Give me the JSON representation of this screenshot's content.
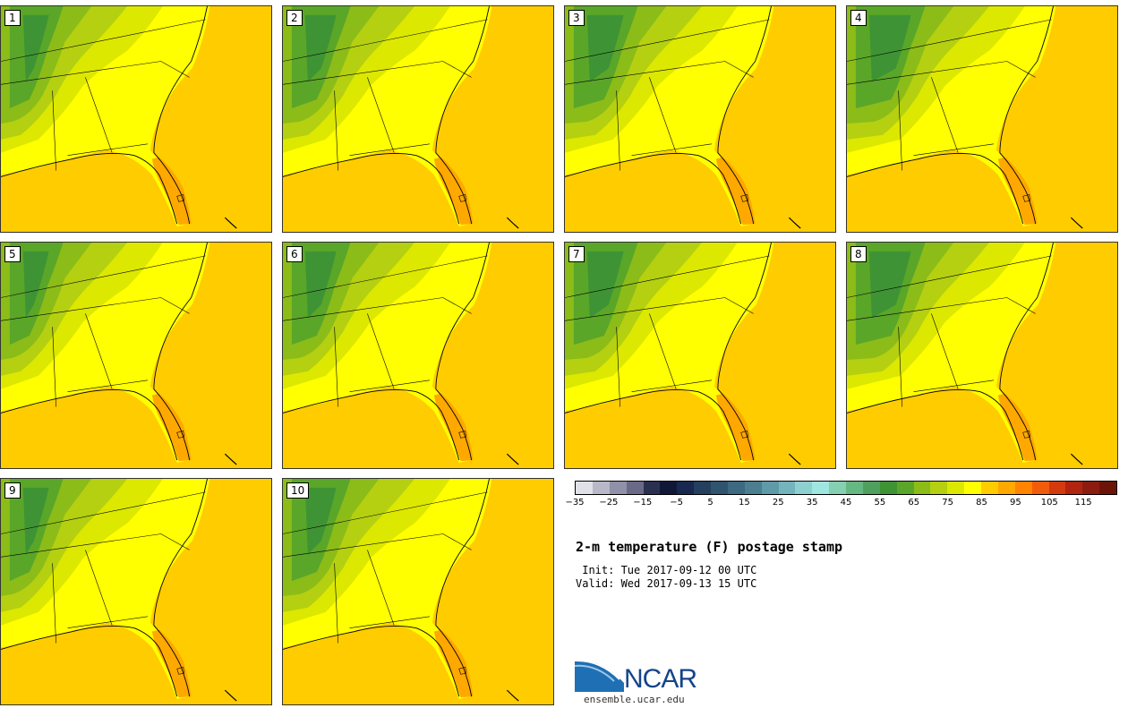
{
  "panels": [
    {
      "label": "1"
    },
    {
      "label": "2"
    },
    {
      "label": "3"
    },
    {
      "label": "4"
    },
    {
      "label": "5"
    },
    {
      "label": "6"
    },
    {
      "label": "7"
    },
    {
      "label": "8"
    },
    {
      "label": "9"
    },
    {
      "label": "10"
    }
  ],
  "colorbar": {
    "colors": [
      "#e0e0e8",
      "#b8b8c8",
      "#9090a8",
      "#6a6a88",
      "#2a3050",
      "#101838",
      "#182850",
      "#24405e",
      "#305470",
      "#3d6a82",
      "#4a7e90",
      "#5e9aa8",
      "#74b4bc",
      "#8ed0d0",
      "#a0e6e0",
      "#84d0b0",
      "#66b882",
      "#4ea05c",
      "#3e9434",
      "#5aa628",
      "#8cbc18",
      "#b4d010",
      "#dce800",
      "#ffff00",
      "#ffcc00",
      "#ffa800",
      "#ff8400",
      "#f05c0c",
      "#d43a10",
      "#b02410",
      "#8c1c10",
      "#6c1408"
    ],
    "tick_labels": [
      "−35",
      "−25",
      "−15",
      "−5",
      "5",
      "15",
      "25",
      "35",
      "45",
      "55",
      "65",
      "75",
      "85",
      "95",
      "105",
      "115"
    ]
  },
  "title": "2-m temperature (F) postage stamp",
  "init": " Init: Tue 2017-09-12 00 UTC",
  "valid": "Valid: Wed 2017-09-13 15 UTC",
  "logo": {
    "name": "NCAR",
    "url": "ensemble.ucar.edu"
  }
}
